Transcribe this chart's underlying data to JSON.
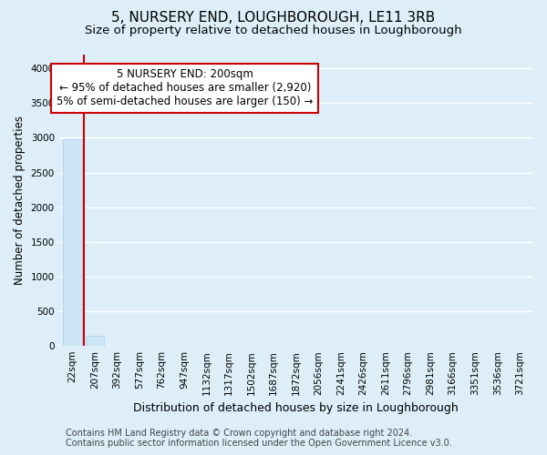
{
  "title": "5, NURSERY END, LOUGHBOROUGH, LE11 3RB",
  "subtitle": "Size of property relative to detached houses in Loughborough",
  "xlabel": "Distribution of detached houses by size in Loughborough",
  "ylabel": "Number of detached properties",
  "footnote": "Contains HM Land Registry data © Crown copyright and database right 2024.\nContains public sector information licensed under the Open Government Licence v3.0.",
  "bar_labels": [
    "22sqm",
    "207sqm",
    "392sqm",
    "577sqm",
    "762sqm",
    "947sqm",
    "1132sqm",
    "1317sqm",
    "1502sqm",
    "1687sqm",
    "1872sqm",
    "2056sqm",
    "2241sqm",
    "2426sqm",
    "2611sqm",
    "2796sqm",
    "2981sqm",
    "3166sqm",
    "3351sqm",
    "3536sqm",
    "3721sqm"
  ],
  "bar_values": [
    2980,
    150,
    0,
    0,
    0,
    0,
    0,
    0,
    0,
    0,
    0,
    0,
    0,
    0,
    0,
    0,
    0,
    0,
    0,
    0,
    0
  ],
  "bar_color": "#cce5f5",
  "bar_edge_color": "#aaccee",
  "ylim": [
    0,
    4200
  ],
  "yticks": [
    0,
    500,
    1000,
    1500,
    2000,
    2500,
    3000,
    3500,
    4000
  ],
  "property_line_color": "#cc0000",
  "annotation_text": "5 NURSERY END: 200sqm\n← 95% of detached houses are smaller (2,920)\n5% of semi-detached houses are larger (150) →",
  "annotation_box_color": "#cc0000",
  "annotation_fill_color": "#ffffff",
  "bg_color": "#ddeef8",
  "plot_bg_color": "#ddeef8",
  "grid_color": "#ffffff",
  "title_fontsize": 11,
  "subtitle_fontsize": 9.5,
  "xlabel_fontsize": 9,
  "ylabel_fontsize": 8.5,
  "tick_fontsize": 7.5,
  "annotation_fontsize": 8.5,
  "footnote_fontsize": 7
}
